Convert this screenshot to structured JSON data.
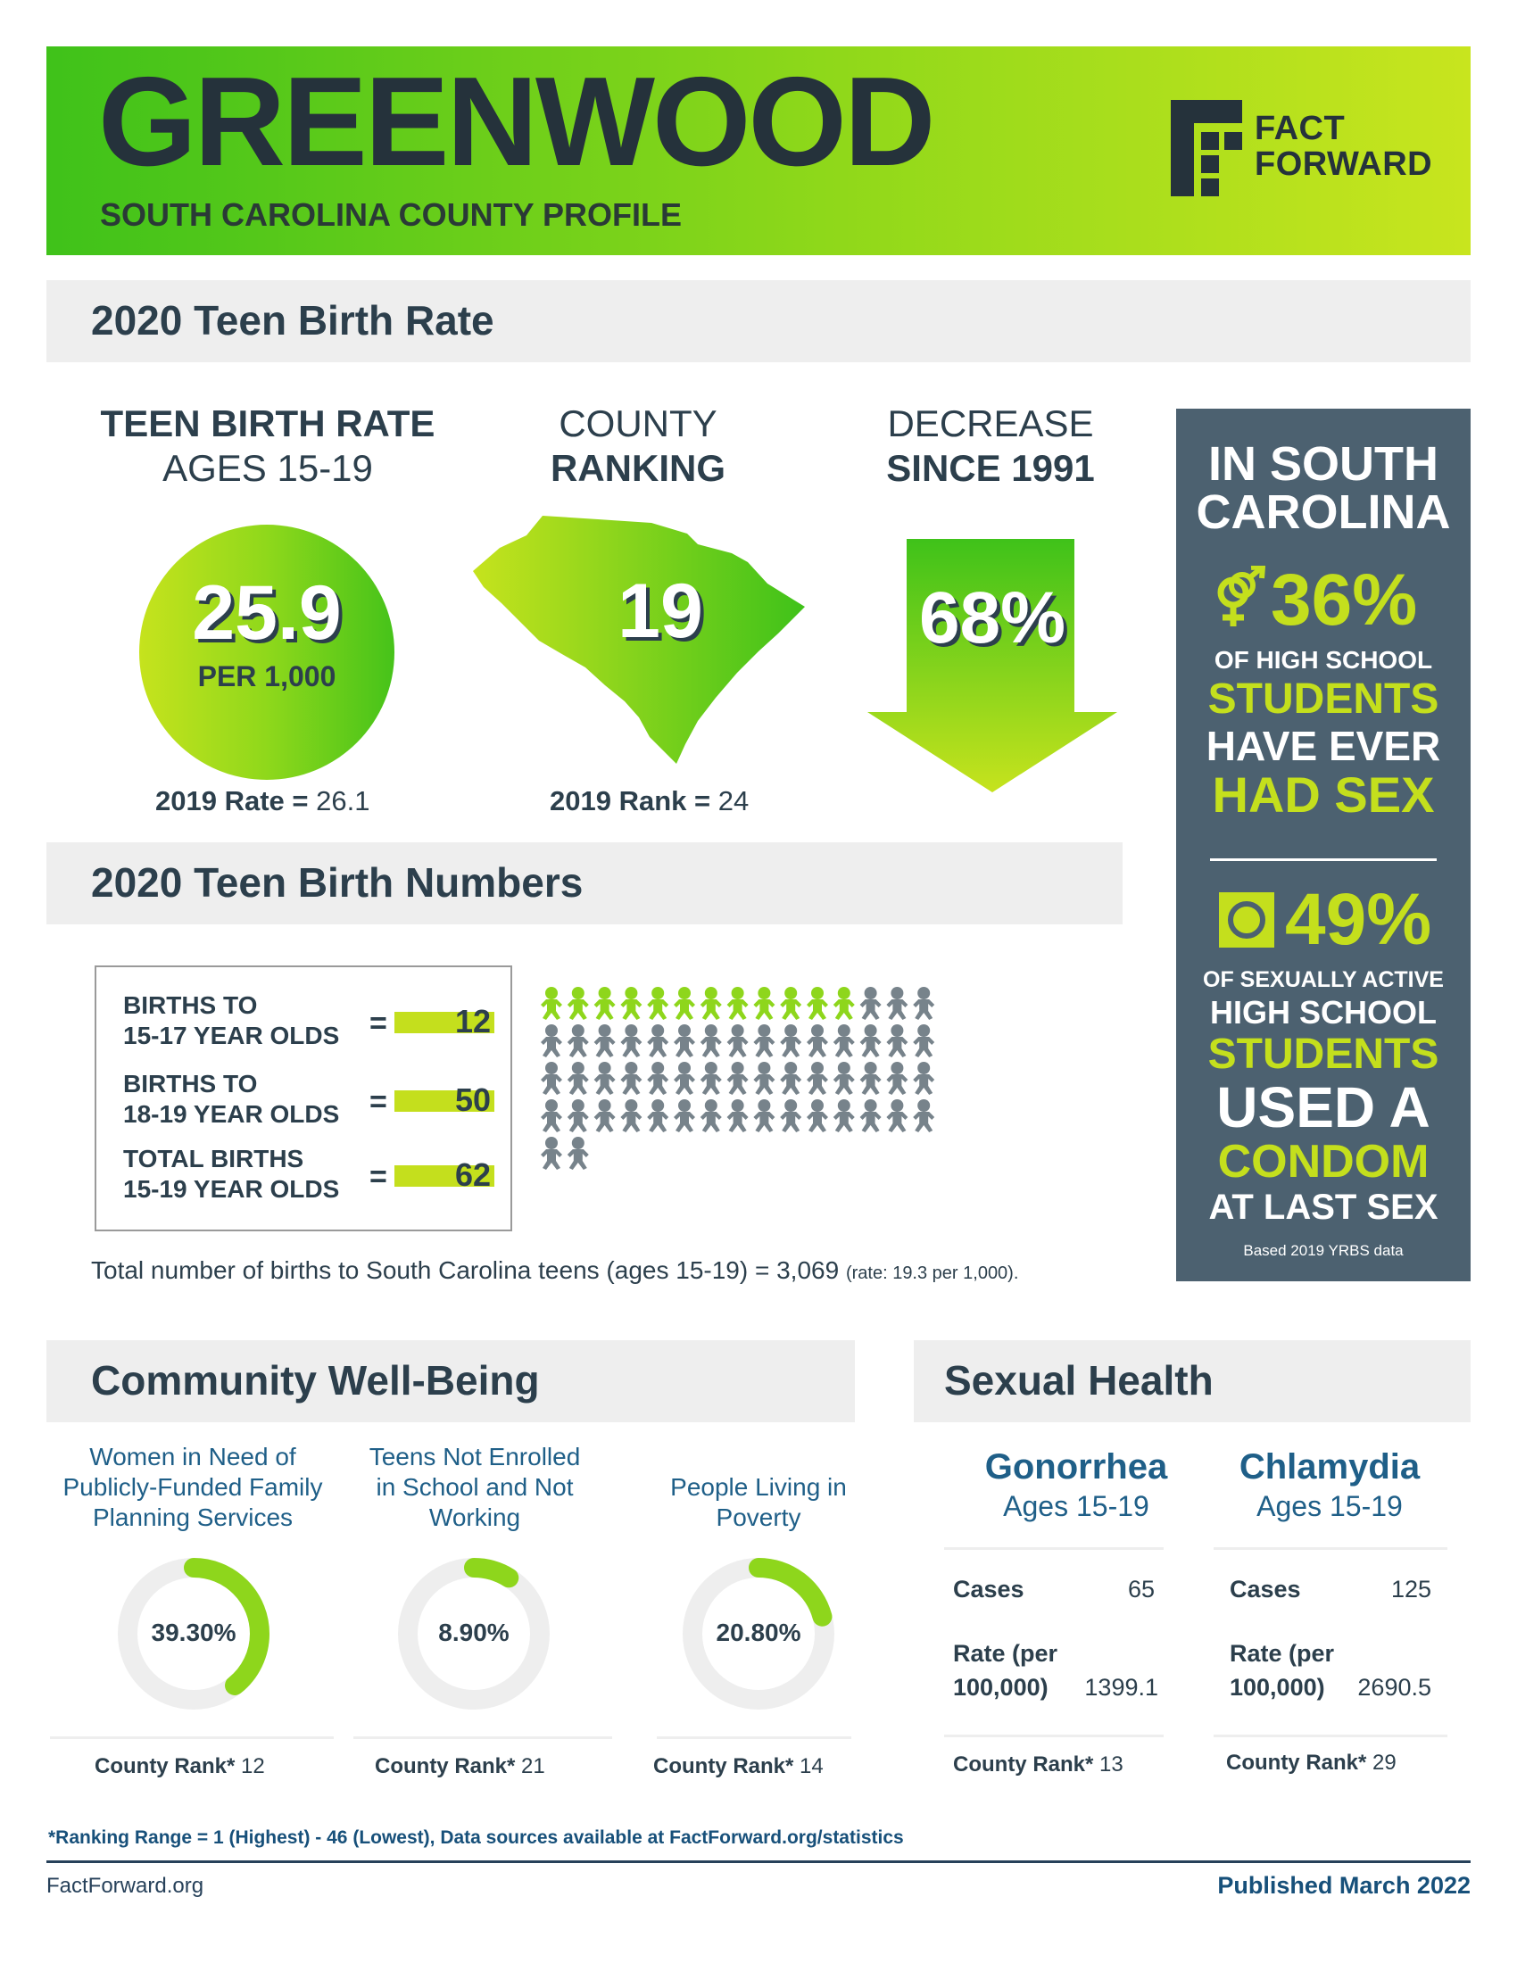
{
  "header": {
    "county": "GREENWOOD",
    "subtitle": "SOUTH CAROLINA COUNTY PROFILE",
    "logo_line1": "FACT",
    "logo_line2": "FORWARD"
  },
  "birth_rate_section": {
    "title": "2020 Teen Birth Rate",
    "rate": {
      "heading_line1": "TEEN BIRTH RATE",
      "heading_line2": "AGES 15-19",
      "value": "25.9",
      "unit": "PER 1,000",
      "prev_label": "2019 Rate =",
      "prev_value": "26.1"
    },
    "ranking": {
      "heading_line1": "COUNTY",
      "heading_line2": "RANKING",
      "value": "19",
      "prev_label": "2019 Rank =",
      "prev_value": "24"
    },
    "decrease": {
      "heading_line1": "DECREASE",
      "heading_line2": "SINCE 1991",
      "value": "68%"
    }
  },
  "sc_panel": {
    "title_line1": "IN SOUTH",
    "title_line2": "CAROLINA",
    "stat1_value": "36%",
    "stat1_line1": "OF HIGH SCHOOL",
    "stat1_line2": "STUDENTS",
    "stat1_line3": "HAVE EVER",
    "stat1_line4": "HAD SEX",
    "stat2_value": "49%",
    "stat2_line1": "OF SEXUALLY ACTIVE",
    "stat2_line2": "HIGH SCHOOL",
    "stat2_line3": "STUDENTS",
    "stat2_line4": "USED A",
    "stat2_line5": "CONDOM",
    "stat2_line6": "AT LAST SEX",
    "source": "Based 2019 YRBS data",
    "colors": {
      "panel": "#4c6170",
      "accent": "#c4df1d"
    }
  },
  "birth_numbers_section": {
    "title": "2020 Teen Birth Numbers",
    "rows": [
      {
        "label_line1": "BIRTHS TO",
        "label_line2": "15-17 YEAR OLDS",
        "eq": "=",
        "value": "12"
      },
      {
        "label_line1": "BIRTHS TO",
        "label_line2": "18-19 YEAR OLDS",
        "eq": "=",
        "value": "50"
      },
      {
        "label_line1": "TOTAL BIRTHS",
        "label_line2": "15-19 YEAR OLDS",
        "eq": "=",
        "value": "62"
      }
    ],
    "pictogram": {
      "highlighted": 12,
      "total": 62,
      "highlight_color": "#8ed61c",
      "base_color": "#77838b",
      "icon": "baby-icon"
    },
    "statewide_main": "Total number of births to South Carolina teens (ages 15-19) = 3,069",
    "statewide_rate": "(rate: 19.3 per 1,000)."
  },
  "community_section": {
    "title": "Community Well-Being",
    "items": [
      {
        "label_line1": "Women in Need of",
        "label_line2": "Publicly-Funded Family",
        "label_line3": "Planning Services",
        "value": "39.30%",
        "fraction": 0.393,
        "rank_label": "County Rank*",
        "rank": "12"
      },
      {
        "label_line1": "Teens Not Enrolled",
        "label_line2": "in School and Not",
        "label_line3": "Working",
        "value": "8.90%",
        "fraction": 0.089,
        "rank_label": "County Rank*",
        "rank": "21"
      },
      {
        "label_line1": "People Living in",
        "label_line2": "Poverty",
        "label_line3": "",
        "value": "20.80%",
        "fraction": 0.208,
        "rank_label": "County Rank*",
        "rank": "14"
      }
    ]
  },
  "sexual_health_section": {
    "title": "Sexual Health",
    "diseases": [
      {
        "name": "Gonorrhea",
        "ages": "Ages 15-19",
        "cases_label": "Cases",
        "cases": "65",
        "rate_label_line1": "Rate (per",
        "rate_label_line2": "100,000)",
        "rate": "1399.1",
        "rank_label": "County Rank*",
        "rank": "13"
      },
      {
        "name": "Chlamydia",
        "ages": "Ages 15-19",
        "cases_label": "Cases",
        "cases": "125",
        "rate_label_line1": "Rate (per",
        "rate_label_line2": "100,000)",
        "rate": "2690.5",
        "rank_label": "County Rank*",
        "rank": "29"
      }
    ]
  },
  "footer": {
    "footnote": "*Ranking Range = 1 (Highest) - 46 (Lowest), Data sources available at FactForward.org/statistics",
    "website": "FactForward.org",
    "published": "Published March 2022"
  },
  "colors": {
    "brand_green": "#3fc21a",
    "lime": "#c4df1d",
    "navy": "#2c3f4c",
    "blue": "#1f5f88",
    "ring_track": "#eeeeee",
    "ring_fill": "#8ed61c"
  }
}
